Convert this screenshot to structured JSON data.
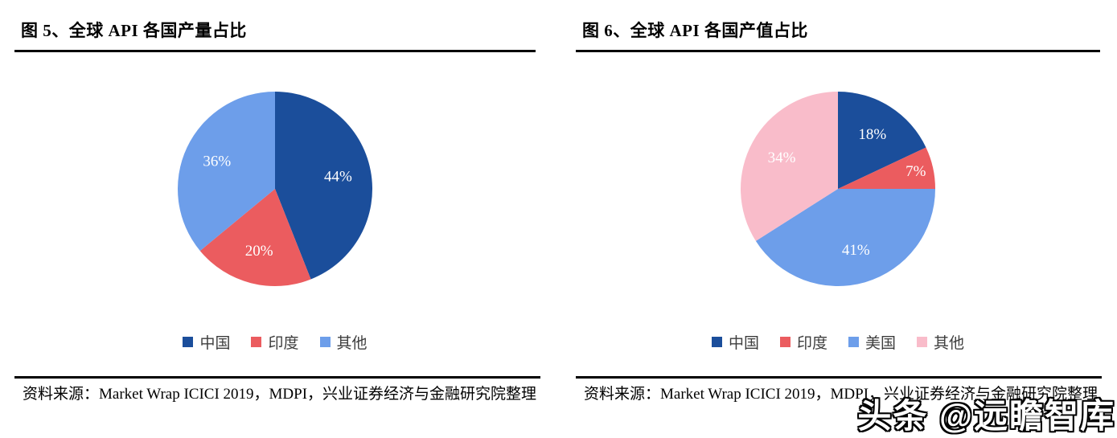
{
  "page": {
    "background": "#ffffff"
  },
  "watermark": {
    "text": "头条 @远瞻智库",
    "fill": "#ffffff",
    "outline": "#000000"
  },
  "chart_data": [
    {
      "type": "pie",
      "title": "图 5、全球 API 各国产量占比",
      "labels": [
        "中国",
        "印度",
        "其他"
      ],
      "values": [
        44,
        20,
        36
      ],
      "unit": "%",
      "colors": [
        "#1B4E9B",
        "#EB5C5F",
        "#6D9EEA"
      ],
      "start_angle_deg": 0,
      "direction": "clockwise",
      "legend_position": "bottom",
      "slice_label_color": "#ffffff",
      "source": "资料来源：Market Wrap ICICI 2019，MDPI，兴业证券经济与金融研究院整理"
    },
    {
      "type": "pie",
      "title": "图 6、全球 API 各国产值占比",
      "labels": [
        "中国",
        "印度",
        "美国",
        "其他"
      ],
      "values": [
        18,
        7,
        41,
        34
      ],
      "unit": "%",
      "colors": [
        "#1B4E9B",
        "#EB5C5F",
        "#6D9EEA",
        "#F9BCCA"
      ],
      "start_angle_deg": 0,
      "direction": "clockwise",
      "legend_position": "bottom",
      "slice_label_color": "#ffffff",
      "source": "资料来源：Market Wrap ICICI 2019，MDPI，兴业证券经济与金融研究院整理"
    }
  ]
}
